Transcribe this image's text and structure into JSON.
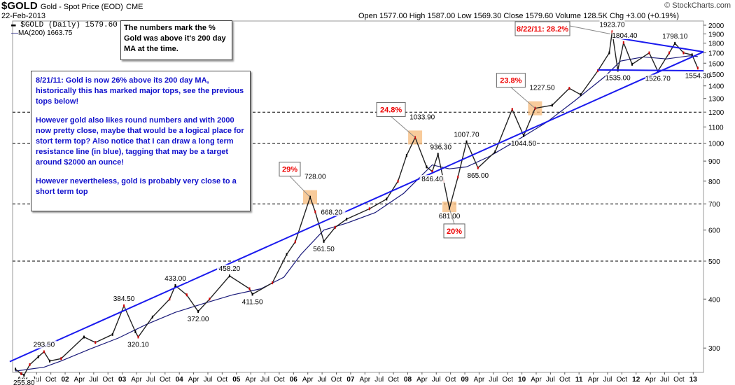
{
  "header": {
    "ticker": "$GOLD",
    "subtitle": "Gold - Spot Price (EOD)",
    "exchange": "CME",
    "date": "22-Feb-2013",
    "ohlc_text": "Open 1577.00   High 1587.00   Low 1569.30   Close 1579.60   Volume 128.5K   Chg +3.00 (+0.19%)",
    "brand": "© StockCharts.com",
    "legend_price": "$GOLD (Daily) 1579.60",
    "legend_ma": "MA(200) 1663.75"
  },
  "notes": {
    "top_note": "The numbers mark the % Gold was above it's 200 day MA at the time.",
    "main_note_p1": "8/21/11: Gold is now 26% above its 200 day MA, historically this has marked major tops, see the previous tops below!",
    "main_note_p2": "However gold also likes round numbers and with 2000 now pretty close, maybe that would be a logical place for stort term top?  Also notice that I can draw a long term resistance line (in blue), tagging that may be a target around $2000 an ounce!",
    "main_note_p3": "However nevertheless, gold is probably very close to a short term top"
  },
  "chart_data": {
    "type": "line",
    "y_scale": "log",
    "ylim": [
      260,
      2050
    ],
    "y_ticks": [
      300,
      400,
      500,
      600,
      700,
      800,
      900,
      1000,
      1100,
      1200,
      1300,
      1400,
      1500,
      1600,
      1700,
      1800,
      1900,
      2000
    ],
    "dashed_levels": [
      500,
      700,
      1000,
      1200
    ],
    "x_labels": [
      "Apr",
      "Jul",
      "Oct",
      "02",
      "Apr",
      "Jul",
      "Oct",
      "03",
      "Apr",
      "Jul",
      "Oct",
      "04",
      "Apr",
      "Jul",
      "Oct",
      "05",
      "Apr",
      "Jul",
      "Oct",
      "06",
      "Apr",
      "Jul",
      "Oct",
      "07",
      "Apr",
      "Jul",
      "Oct",
      "08",
      "Apr",
      "Jul",
      "Oct",
      "09",
      "Apr",
      "Jul",
      "Oct",
      "10",
      "Apr",
      "Jul",
      "Oct",
      "11",
      "Apr",
      "Jul",
      "Oct",
      "12",
      "Apr",
      "Jul",
      "Oct",
      "13"
    ],
    "series": [
      {
        "key": "price",
        "color": "#000000",
        "points": [
          [
            2001.2,
            265
          ],
          [
            2001.3,
            258
          ],
          [
            2001.35,
            255.8
          ],
          [
            2001.45,
            272
          ],
          [
            2001.6,
            285
          ],
          [
            2001.7,
            293.5
          ],
          [
            2001.8,
            278
          ],
          [
            2002.0,
            282
          ],
          [
            2002.4,
            320
          ],
          [
            2002.6,
            310
          ],
          [
            2002.9,
            325
          ],
          [
            2003.1,
            384.5
          ],
          [
            2003.3,
            330
          ],
          [
            2003.35,
            320.1
          ],
          [
            2003.6,
            360
          ],
          [
            2003.9,
            400
          ],
          [
            2004.0,
            433
          ],
          [
            2004.2,
            410
          ],
          [
            2004.4,
            372
          ],
          [
            2004.6,
            400
          ],
          [
            2004.95,
            458.2
          ],
          [
            2005.3,
            425
          ],
          [
            2005.35,
            411.5
          ],
          [
            2005.7,
            440
          ],
          [
            2005.95,
            520
          ],
          [
            2006.1,
            560
          ],
          [
            2006.36,
            728
          ],
          [
            2006.45,
            668.2
          ],
          [
            2006.6,
            561.5
          ],
          [
            2006.8,
            610
          ],
          [
            2007.0,
            640
          ],
          [
            2007.4,
            680
          ],
          [
            2007.7,
            720
          ],
          [
            2007.9,
            800
          ],
          [
            2008.05,
            930
          ],
          [
            2008.2,
            1033.9
          ],
          [
            2008.4,
            870
          ],
          [
            2008.5,
            846.4
          ],
          [
            2008.6,
            936.3
          ],
          [
            2008.7,
            800
          ],
          [
            2008.8,
            681
          ],
          [
            2008.95,
            820
          ],
          [
            2009.1,
            1007.7
          ],
          [
            2009.3,
            865
          ],
          [
            2009.6,
            950
          ],
          [
            2009.9,
            1220
          ],
          [
            2010.1,
            1044.5
          ],
          [
            2010.3,
            1227.5
          ],
          [
            2010.6,
            1250
          ],
          [
            2010.9,
            1380
          ],
          [
            2011.1,
            1330
          ],
          [
            2011.4,
            1530
          ],
          [
            2011.6,
            1700
          ],
          [
            2011.65,
            1923.7
          ],
          [
            2011.75,
            1535
          ],
          [
            2011.85,
            1804.4
          ],
          [
            2012.0,
            1590
          ],
          [
            2012.3,
            1700
          ],
          [
            2012.45,
            1526.7
          ],
          [
            2012.65,
            1700
          ],
          [
            2012.75,
            1798.1
          ],
          [
            2012.9,
            1700
          ],
          [
            2013.05,
            1680
          ],
          [
            2013.15,
            1554.3
          ]
        ]
      },
      {
        "key": "ma200",
        "color": "#1a1a7a",
        "points": [
          [
            2001.2,
            262
          ],
          [
            2001.7,
            268
          ],
          [
            2002.0,
            278
          ],
          [
            2002.5,
            298
          ],
          [
            2003.0,
            318
          ],
          [
            2003.5,
            345
          ],
          [
            2004.0,
            370
          ],
          [
            2004.5,
            390
          ],
          [
            2005.0,
            410
          ],
          [
            2005.5,
            425
          ],
          [
            2005.9,
            455
          ],
          [
            2006.2,
            520
          ],
          [
            2006.6,
            600
          ],
          [
            2007.0,
            625
          ],
          [
            2007.5,
            665
          ],
          [
            2008.0,
            745
          ],
          [
            2008.5,
            880
          ],
          [
            2008.8,
            860
          ],
          [
            2009.1,
            870
          ],
          [
            2009.5,
            925
          ],
          [
            2010.0,
            1020
          ],
          [
            2010.5,
            1130
          ],
          [
            2011.0,
            1285
          ],
          [
            2011.5,
            1470
          ],
          [
            2011.8,
            1620
          ],
          [
            2012.2,
            1660
          ],
          [
            2012.6,
            1640
          ],
          [
            2013.0,
            1670
          ],
          [
            2013.15,
            1663.75
          ]
        ]
      }
    ],
    "trendlines": [
      {
        "name": "resistance",
        "from": [
          2001.1,
          277
        ],
        "to": [
          2013.25,
          1710
        ],
        "color": "#1a1aee"
      },
      {
        "name": "upper-triangle",
        "from": [
          2011.7,
          1860
        ],
        "to": [
          2013.25,
          1710
        ],
        "color": "#1a1aee"
      },
      {
        "name": "support",
        "from": [
          2011.4,
          1538
        ],
        "to": [
          2013.25,
          1530
        ],
        "color": "#1a1aee"
      }
    ],
    "price_labels": [
      {
        "text": "255.80",
        "x": 2001.35,
        "y": 255.8,
        "pos": "below"
      },
      {
        "text": "293.50",
        "x": 2001.7,
        "y": 293.5,
        "pos": "above"
      },
      {
        "text": "384.50",
        "x": 2003.1,
        "y": 384.5,
        "pos": "above"
      },
      {
        "text": "320.10",
        "x": 2003.35,
        "y": 320.1,
        "pos": "below"
      },
      {
        "text": "433.00",
        "x": 2004.0,
        "y": 433,
        "pos": "above"
      },
      {
        "text": "372.00",
        "x": 2004.4,
        "y": 372,
        "pos": "below"
      },
      {
        "text": "458.20",
        "x": 2004.95,
        "y": 458.2,
        "pos": "above"
      },
      {
        "text": "411.50",
        "x": 2005.35,
        "y": 411.5,
        "pos": "below"
      },
      {
        "text": "668.20",
        "x": 2006.5,
        "y": 668.2,
        "pos": "right"
      },
      {
        "text": "561.50",
        "x": 2006.6,
        "y": 561.5,
        "pos": "below"
      },
      {
        "text": "846.40",
        "x": 2008.5,
        "y": 846.4,
        "pos": "below"
      },
      {
        "text": "936.30",
        "x": 2008.65,
        "y": 936.3,
        "pos": "above"
      },
      {
        "text": "681.00",
        "x": 2008.8,
        "y": 681,
        "pos": "below"
      },
      {
        "text": "1007.70",
        "x": 2009.1,
        "y": 1007.7,
        "pos": "above"
      },
      {
        "text": "865.00",
        "x": 2009.3,
        "y": 865,
        "pos": "below"
      },
      {
        "text": "1044.50",
        "x": 2010.1,
        "y": 1044.5,
        "pos": "below"
      },
      {
        "text": "1923.70",
        "x": 2011.65,
        "y": 1923.7,
        "pos": "above"
      },
      {
        "text": "1804.40",
        "x": 2011.87,
        "y": 1804.4,
        "pos": "above"
      },
      {
        "text": "1535.00",
        "x": 2011.75,
        "y": 1535,
        "pos": "below"
      },
      {
        "text": "1798.10",
        "x": 2012.75,
        "y": 1798.1,
        "pos": "above"
      },
      {
        "text": "1526.70",
        "x": 2012.45,
        "y": 1526.7,
        "pos": "below"
      },
      {
        "text": "1554.30",
        "x": 2013.15,
        "y": 1554.3,
        "pos": "below"
      }
    ],
    "callouts": [
      {
        "pct": "29%",
        "label": "728.00",
        "x": 2006.36,
        "y": 728,
        "dir": "up"
      },
      {
        "pct": "24.8%",
        "label": "1033.90",
        "x": 2008.2,
        "y": 1033.9,
        "dir": "up"
      },
      {
        "pct": "20%",
        "label": "",
        "x": 2008.8,
        "y": 681,
        "dir": "down"
      },
      {
        "pct": "23.8%",
        "label": "1227.50",
        "x": 2010.3,
        "y": 1227.5,
        "dir": "up"
      },
      {
        "pct": "8/22/11:  28.2%",
        "label": "",
        "x": 2011.65,
        "y": 1880,
        "dir": "box"
      }
    ]
  }
}
